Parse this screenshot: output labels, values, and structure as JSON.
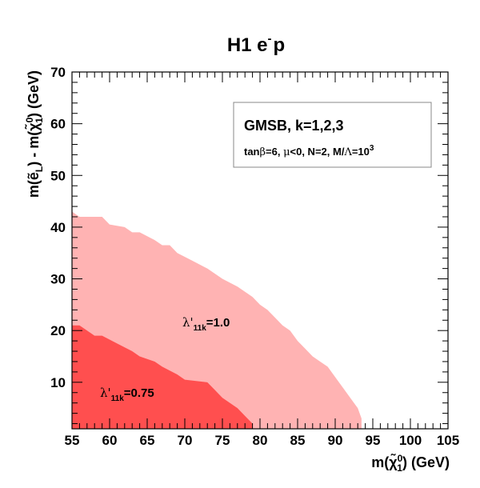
{
  "chart_data": {
    "type": "area",
    "title_main": "H1 e",
    "title_sup": "-",
    "title_tail": "p",
    "xlabel_pre": "m(",
    "xlabel_sym": "χ̃",
    "xlabel_sup": "0",
    "xlabel_sub": "1",
    "xlabel_post": ") (GeV)",
    "ylabel_pre": "m(",
    "ylabel_sym": "ẽ",
    "ylabel_sub": "L",
    "ylabel_mid": ") - m(",
    "ylabel_sym2": "χ̃",
    "ylabel_sup2": "0",
    "ylabel_sub2": "1",
    "ylabel_post": ") (GeV)",
    "xlim": [
      55,
      105
    ],
    "ylim": [
      1,
      70
    ],
    "xticks": [
      "55",
      "60",
      "65",
      "70",
      "75",
      "80",
      "85",
      "90",
      "95",
      "100",
      "105"
    ],
    "yticks": [
      "10",
      "20",
      "30",
      "40",
      "50",
      "60",
      "70"
    ],
    "legend": {
      "line1": "GMSB, k=1,2,3",
      "line2_pre": "tan",
      "line2_beta": "β",
      "line2_mid": "=6, ",
      "line2_mu": "μ",
      "line2_rest": "<0, N=2, M/",
      "line2_lambda": "Λ",
      "line2_eq": "=10",
      "line2_sup": "3"
    },
    "series": [
      {
        "name": "lambda_11k_1.0",
        "label_sym": "λ'",
        "label_sub": "11k",
        "label_val": "=1.0",
        "color": "#ffb3b3",
        "boundary": [
          [
            55,
            43
          ],
          [
            56,
            42
          ],
          [
            59,
            42
          ],
          [
            60,
            40.5
          ],
          [
            62,
            40
          ],
          [
            63,
            39
          ],
          [
            64,
            39
          ],
          [
            66,
            37.5
          ],
          [
            67,
            36.5
          ],
          [
            68,
            36.5
          ],
          [
            69,
            35
          ],
          [
            71,
            33.5
          ],
          [
            73,
            32
          ],
          [
            75,
            30
          ],
          [
            77,
            28.5
          ],
          [
            79,
            26.5
          ],
          [
            80,
            25
          ],
          [
            81,
            24
          ],
          [
            82,
            22.5
          ],
          [
            83,
            21
          ],
          [
            84,
            20
          ],
          [
            85,
            18
          ],
          [
            86,
            16.5
          ],
          [
            87,
            15
          ],
          [
            88,
            14
          ],
          [
            89,
            13
          ],
          [
            90,
            11
          ],
          [
            91,
            9
          ],
          [
            92,
            7
          ],
          [
            93,
            5
          ],
          [
            93.5,
            3
          ],
          [
            93.5,
            1
          ]
        ]
      },
      {
        "name": "lambda_11k_0.75",
        "label_sym": "λ'",
        "label_sub": "11k",
        "label_val": "=0.75",
        "color": "#ff4f4f",
        "boundary": [
          [
            55,
            21
          ],
          [
            56,
            21
          ],
          [
            58,
            19
          ],
          [
            59,
            19
          ],
          [
            61,
            17.5
          ],
          [
            63,
            16
          ],
          [
            64,
            15
          ],
          [
            66,
            14
          ],
          [
            67,
            13
          ],
          [
            69,
            11.5
          ],
          [
            70,
            10.5
          ],
          [
            73,
            10
          ],
          [
            74,
            8.5
          ],
          [
            75,
            7
          ],
          [
            77,
            5
          ],
          [
            78,
            3.5
          ],
          [
            79,
            2
          ],
          [
            79,
            1
          ]
        ]
      }
    ]
  }
}
